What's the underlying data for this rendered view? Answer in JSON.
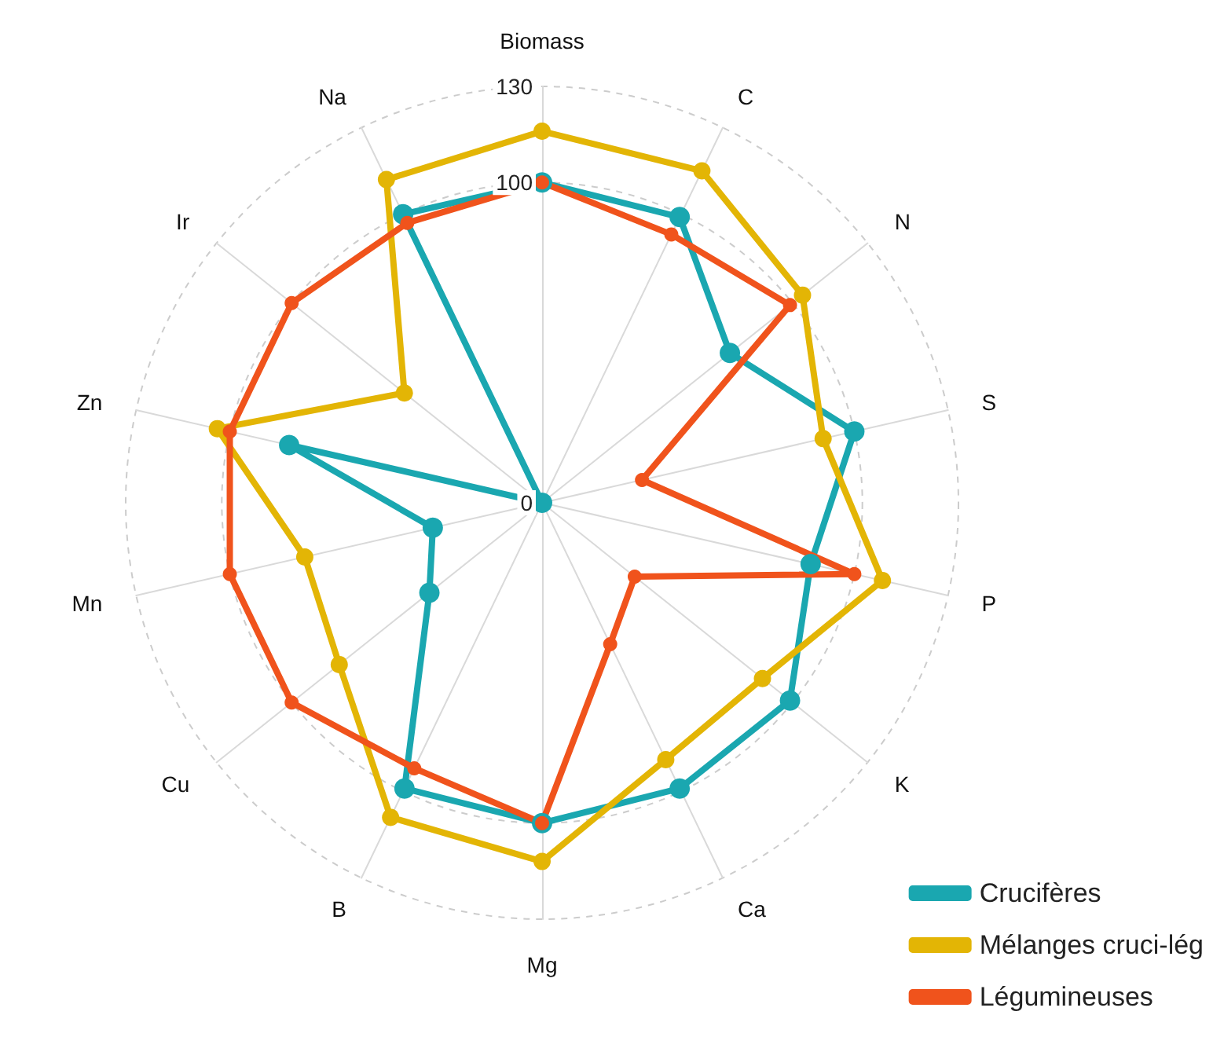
{
  "chart_data": {
    "type": "radar",
    "categories": [
      "Biomass",
      "C",
      "N",
      "S",
      "P",
      "K",
      "Ca",
      "Mg",
      "B",
      "Cu",
      "Mn",
      "Zn",
      "Ir",
      "Na"
    ],
    "series": [
      {
        "name": "Crucifères",
        "color": "#1aa7b0",
        "values": [
          100,
          99,
          75,
          100,
          86,
          99,
          99,
          100,
          99,
          45,
          35,
          81,
          0,
          100
        ]
      },
      {
        "name": "Mélanges cruci-lég",
        "color": "#e3b505",
        "values": [
          116,
          115,
          104,
          90,
          109,
          88,
          89,
          112,
          109,
          81,
          76,
          104,
          55,
          112
        ]
      },
      {
        "name": "Légumineuses",
        "color": "#f0531c",
        "values": [
          100,
          93,
          99,
          32,
          100,
          37,
          49,
          100,
          92,
          100,
          100,
          100,
          100,
          97
        ]
      }
    ],
    "ylim": [
      0,
      130
    ],
    "yticks": [
      0,
      100,
      130
    ],
    "grid": true,
    "legend": "bottom right",
    "marker": "circle",
    "line_style": "solid"
  }
}
